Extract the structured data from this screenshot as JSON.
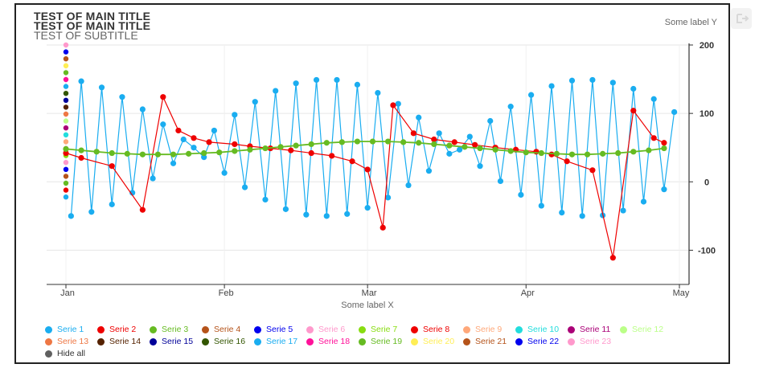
{
  "header": {
    "title_1": "TEST OF MAIN TITLE",
    "title_2": "TEST OF MAIN TITLE",
    "subtitle": "TEST OF SUBTITLE"
  },
  "toolbar": {
    "export_icon": "export-icon"
  },
  "legend": {
    "hide_all_label": "Hide all",
    "hide_all_color": "#606060"
  },
  "chart_data": {
    "type": "line",
    "xlabel": "Some label X",
    "ylabel": "Some label Y",
    "ylim": [
      -150,
      200
    ],
    "yticks": [
      200,
      100,
      0,
      -100
    ],
    "xlim": [
      "2021-01-01",
      "2021-05-01"
    ],
    "xticks": [
      {
        "label": "Jan",
        "date": "2021-01-01"
      },
      {
        "label": "Feb",
        "date": "2021-02-01"
      },
      {
        "label": "Mar",
        "date": "2021-03-01"
      },
      {
        "label": "Apr",
        "date": "2021-04-01"
      },
      {
        "label": "May",
        "date": "2021-05-01"
      }
    ],
    "grid": true,
    "legend_position": "bottom",
    "series": [
      {
        "name": "Serie 1",
        "color": "#1aadf0",
        "x": [
          "2021-01-02",
          "2021-01-04",
          "2021-01-06",
          "2021-01-08",
          "2021-01-10",
          "2021-01-12",
          "2021-01-14",
          "2021-01-16",
          "2021-01-18",
          "2021-01-20",
          "2021-01-22",
          "2021-01-24",
          "2021-01-26",
          "2021-01-28",
          "2021-01-30",
          "2021-02-01",
          "2021-02-03",
          "2021-02-05",
          "2021-02-07",
          "2021-02-09",
          "2021-02-11",
          "2021-02-13",
          "2021-02-15",
          "2021-02-17",
          "2021-02-19",
          "2021-02-21",
          "2021-02-23",
          "2021-02-25",
          "2021-02-27",
          "2021-03-01",
          "2021-03-03",
          "2021-03-05",
          "2021-03-07",
          "2021-03-09",
          "2021-03-11",
          "2021-03-13",
          "2021-03-15",
          "2021-03-17",
          "2021-03-19",
          "2021-03-21",
          "2021-03-23",
          "2021-03-25",
          "2021-03-27",
          "2021-03-29",
          "2021-03-31",
          "2021-04-02",
          "2021-04-04",
          "2021-04-06",
          "2021-04-08",
          "2021-04-10",
          "2021-04-12",
          "2021-04-14",
          "2021-04-16",
          "2021-04-18",
          "2021-04-20",
          "2021-04-22",
          "2021-04-24",
          "2021-04-26",
          "2021-04-28",
          "2021-04-30"
        ],
        "y": [
          -50,
          147,
          -44,
          138,
          -33,
          124,
          -16,
          106,
          5,
          84,
          27,
          62,
          50,
          36,
          75,
          13,
          98,
          -8,
          117,
          -26,
          133,
          -40,
          144,
          -48,
          149,
          -50,
          149,
          -47,
          142,
          -38,
          130,
          -23,
          114,
          -5,
          94,
          16,
          71,
          41,
          47,
          66,
          23,
          89,
          1,
          110,
          -19,
          127,
          -35,
          140,
          -45,
          148,
          -50,
          149,
          -49,
          145,
          -42,
          136,
          -29,
          121,
          -11,
          102
        ]
      },
      {
        "name": "Serie 2",
        "color": "#ee0000",
        "x": [
          "2021-01-01",
          "2021-01-04",
          "2021-01-10",
          "2021-01-16",
          "2021-01-20",
          "2021-01-23",
          "2021-01-26",
          "2021-01-29",
          "2021-02-03",
          "2021-02-06",
          "2021-02-10",
          "2021-02-14",
          "2021-02-18",
          "2021-02-22",
          "2021-02-26",
          "2021-03-01",
          "2021-03-04",
          "2021-03-06",
          "2021-03-10",
          "2021-03-14",
          "2021-03-18",
          "2021-03-22",
          "2021-03-26",
          "2021-03-30",
          "2021-04-03",
          "2021-04-06",
          "2021-04-09",
          "2021-04-14",
          "2021-04-18",
          "2021-04-22",
          "2021-04-26",
          "2021-04-28"
        ],
        "y": [
          42,
          35,
          23,
          -41,
          124,
          75,
          64,
          58,
          55,
          52,
          49,
          46,
          42,
          38,
          30,
          18,
          -67,
          112,
          71,
          62,
          58,
          54,
          50,
          47,
          44,
          40,
          30,
          17,
          -111,
          104,
          64,
          57
        ]
      },
      {
        "name": "Serie 3",
        "color": "#66bb22",
        "x": [
          "2021-01-01",
          "2021-01-04",
          "2021-01-07",
          "2021-01-10",
          "2021-01-13",
          "2021-01-16",
          "2021-01-19",
          "2021-01-22",
          "2021-01-25",
          "2021-01-28",
          "2021-01-31",
          "2021-02-03",
          "2021-02-06",
          "2021-02-09",
          "2021-02-12",
          "2021-02-15",
          "2021-02-18",
          "2021-02-21",
          "2021-02-24",
          "2021-02-27",
          "2021-03-02",
          "2021-03-05",
          "2021-03-08",
          "2021-03-11",
          "2021-03-14",
          "2021-03-17",
          "2021-03-20",
          "2021-03-23",
          "2021-03-26",
          "2021-03-29",
          "2021-04-01",
          "2021-04-04",
          "2021-04-07",
          "2021-04-10",
          "2021-04-13",
          "2021-04-16",
          "2021-04-19",
          "2021-04-22",
          "2021-04-25",
          "2021-04-28"
        ],
        "y": [
          48,
          46,
          44,
          42,
          41,
          40,
          40,
          40,
          41,
          42,
          43,
          45,
          47,
          49,
          51,
          53,
          55,
          57,
          58,
          59,
          59,
          59,
          58,
          57,
          55,
          53,
          51,
          49,
          47,
          45,
          43,
          42,
          41,
          40,
          40,
          41,
          42,
          44,
          46,
          49
        ]
      }
    ],
    "legend_series": [
      {
        "name": "Serie 1",
        "color": "#1aadf0"
      },
      {
        "name": "Serie 2",
        "color": "#ee0000"
      },
      {
        "name": "Serie 3",
        "color": "#66bb22"
      },
      {
        "name": "Serie 4",
        "color": "#b5531a"
      },
      {
        "name": "Serie 5",
        "color": "#0000ee"
      },
      {
        "name": "Serie 6",
        "color": "#ff99cc"
      },
      {
        "name": "Serie 7",
        "color": "#88dd11"
      },
      {
        "name": "Serie 8",
        "color": "#ee0000"
      },
      {
        "name": "Serie 9",
        "color": "#ffa87a"
      },
      {
        "name": "Serie 10",
        "color": "#22dddd"
      },
      {
        "name": "Serie 11",
        "color": "#aa0077"
      },
      {
        "name": "Serie 12",
        "color": "#bbff88"
      },
      {
        "name": "Serie 13",
        "color": "#ee7744"
      },
      {
        "name": "Serie 14",
        "color": "#552200"
      },
      {
        "name": "Serie 15",
        "color": "#000099"
      },
      {
        "name": "Serie 16",
        "color": "#335500"
      },
      {
        "name": "Serie 17",
        "color": "#1aadf0"
      },
      {
        "name": "Serie 18",
        "color": "#ff1199"
      },
      {
        "name": "Serie 19",
        "color": "#66bb22"
      },
      {
        "name": "Serie 20",
        "color": "#ffee55"
      },
      {
        "name": "Serie 21",
        "color": "#b5531a"
      },
      {
        "name": "Serie 22",
        "color": "#0000ee"
      },
      {
        "name": "Serie 23",
        "color": "#ff99cc"
      }
    ]
  }
}
